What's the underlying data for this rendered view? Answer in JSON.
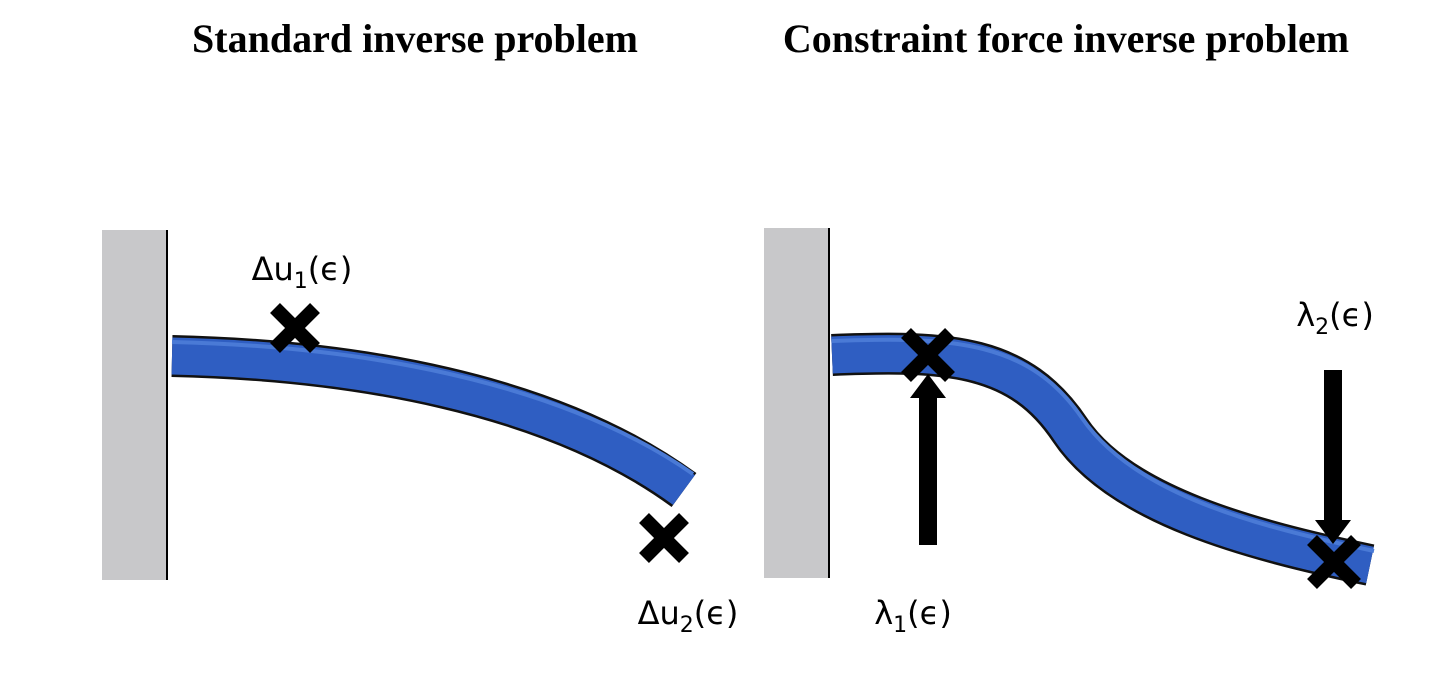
{
  "panels": [
    {
      "title": "Standard inverse problem",
      "labels": [
        {
          "base": "Δu",
          "sub": "1",
          "arg": "(ϵ)"
        },
        {
          "base": "Δu",
          "sub": "2",
          "arg": "(ϵ)"
        }
      ]
    },
    {
      "title": "Constraint force inverse problem",
      "labels": [
        {
          "base": "λ",
          "sub": "1",
          "arg": "(ϵ)"
        },
        {
          "base": "λ",
          "sub": "2",
          "arg": "(ϵ)"
        }
      ]
    }
  ]
}
